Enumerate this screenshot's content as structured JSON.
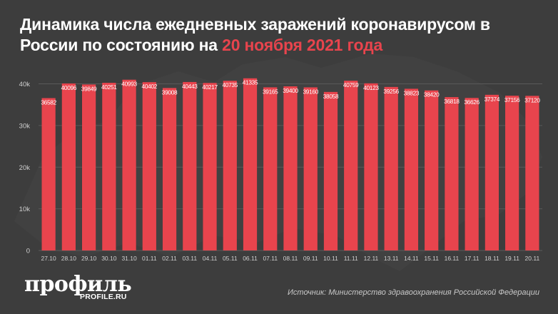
{
  "header": {
    "title_main": "Динамика числа ежедневных заражений коронавирусом в России по состоянию на",
    "title_accent": "20 ноября 2021 года"
  },
  "footer": {
    "logo_text": "профиль",
    "logo_sub": "PROFILE.RU",
    "source": "Источник: Министерство здравоохранения Российской Федерации"
  },
  "colors": {
    "background": "#3d3d3d",
    "bar": "#e8444d",
    "accent": "#e8444d",
    "grid": "#5a5a5a",
    "text": "#ffffff"
  },
  "chart_data": {
    "type": "bar",
    "categories": [
      "27.10",
      "28.10",
      "29.10",
      "30.10",
      "31.10",
      "01.11",
      "02.11",
      "03.11",
      "04.11",
      "05.11",
      "06.11",
      "07.11",
      "08.11",
      "09.11",
      "10.11",
      "11.11",
      "12.11",
      "13.11",
      "14.11",
      "15.11",
      "16.11",
      "17.11",
      "18.11",
      "19.11",
      "20.11"
    ],
    "values": [
      36582,
      40096,
      39849,
      40251,
      40993,
      40402,
      39008,
      40443,
      40217,
      40735,
      41335,
      39165,
      39400,
      39160,
      38058,
      40759,
      40123,
      39256,
      38823,
      38420,
      36818,
      36626,
      37374,
      37156,
      37120
    ],
    "yticks": [
      0,
      10000,
      20000,
      30000,
      40000
    ],
    "ytick_labels": [
      "0",
      "10k",
      "20k",
      "30k",
      "40k"
    ],
    "ylim": [
      0,
      43000
    ],
    "grid": true,
    "title": "Динамика числа ежедневных заражений коронавирусом в России по состоянию на 20 ноября 2021 года",
    "xlabel": "",
    "ylabel": ""
  }
}
